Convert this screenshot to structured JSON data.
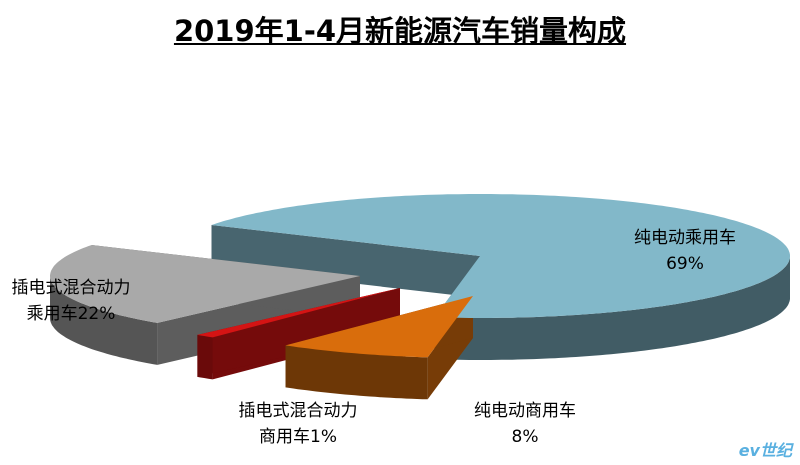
{
  "chart_data": {
    "type": "pie",
    "title": "2019年1-4月新能源汽车销量构成",
    "categories": [
      "纯电动乘用车",
      "纯电动商用车",
      "插电式混合动力商用车",
      "插电式混合动力乘用车"
    ],
    "values": [
      69,
      8,
      1,
      22
    ],
    "value_labels": [
      "69%",
      "8%",
      "1%",
      "22%"
    ],
    "colors": [
      "#82b8c9",
      "#d96d0c",
      "#d41414",
      "#a9a9a9"
    ]
  },
  "watermark": "ev世纪"
}
